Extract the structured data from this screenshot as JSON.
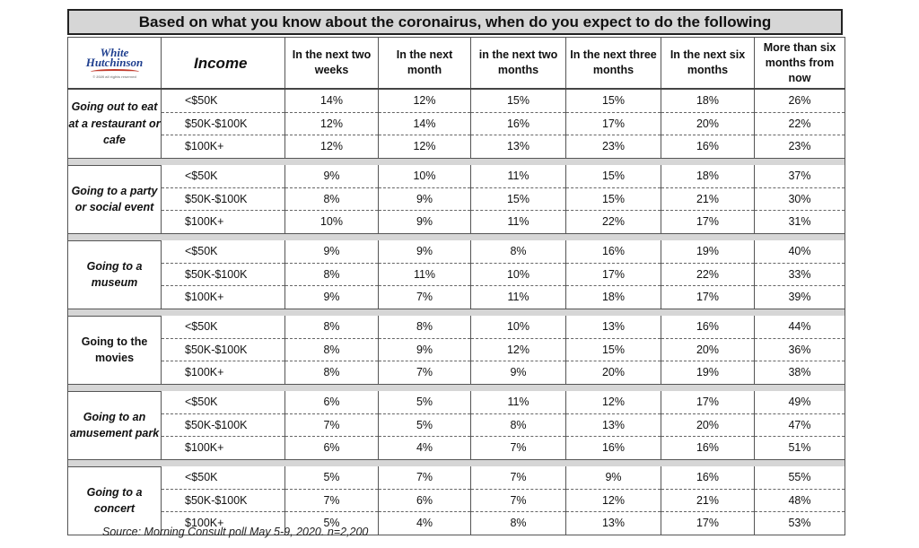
{
  "title": "Based on what you know about the coronairus, when do you expect to do the following",
  "logo": {
    "line1": "White",
    "line2": "Hutchinson",
    "small": "© 2020 all rights reserved"
  },
  "header": {
    "income": "Income",
    "columns": [
      "In the next two weeks",
      "In the next month",
      "in the next two months",
      "In the next three months",
      "In the next six months",
      "More than six months from now"
    ]
  },
  "groups": [
    {
      "label": "Going out to eat at a restaurant or cafe",
      "italic": true,
      "rows": [
        {
          "income": "<$50K",
          "values": [
            "14%",
            "12%",
            "15%",
            "15%",
            "18%",
            "26%"
          ]
        },
        {
          "income": "$50K-$100K",
          "values": [
            "12%",
            "14%",
            "16%",
            "17%",
            "20%",
            "22%"
          ]
        },
        {
          "income": "$100K+",
          "values": [
            "12%",
            "12%",
            "13%",
            "23%",
            "16%",
            "23%"
          ]
        }
      ]
    },
    {
      "label": "Going to a party or social event",
      "italic": true,
      "rows": [
        {
          "income": "<$50K",
          "values": [
            "9%",
            "10%",
            "11%",
            "15%",
            "18%",
            "37%"
          ]
        },
        {
          "income": "$50K-$100K",
          "values": [
            "8%",
            "9%",
            "15%",
            "15%",
            "21%",
            "30%"
          ]
        },
        {
          "income": "$100K+",
          "values": [
            "10%",
            "9%",
            "11%",
            "22%",
            "17%",
            "31%"
          ]
        }
      ]
    },
    {
      "label": "Going to a museum",
      "italic": true,
      "rows": [
        {
          "income": "<$50K",
          "values": [
            "9%",
            "9%",
            "8%",
            "16%",
            "19%",
            "40%"
          ]
        },
        {
          "income": "$50K-$100K",
          "values": [
            "8%",
            "11%",
            "10%",
            "17%",
            "22%",
            "33%"
          ]
        },
        {
          "income": "$100K+",
          "values": [
            "9%",
            "7%",
            "11%",
            "18%",
            "17%",
            "39%"
          ]
        }
      ]
    },
    {
      "label": "Going to the movies",
      "italic": false,
      "rows": [
        {
          "income": "<$50K",
          "values": [
            "8%",
            "8%",
            "10%",
            "13%",
            "16%",
            "44%"
          ]
        },
        {
          "income": "$50K-$100K",
          "values": [
            "8%",
            "9%",
            "12%",
            "15%",
            "20%",
            "36%"
          ]
        },
        {
          "income": "$100K+",
          "values": [
            "8%",
            "7%",
            "9%",
            "20%",
            "19%",
            "38%"
          ]
        }
      ]
    },
    {
      "label": "Going to an amusement park",
      "italic": true,
      "rows": [
        {
          "income": "<$50K",
          "values": [
            "6%",
            "5%",
            "11%",
            "12%",
            "17%",
            "49%"
          ]
        },
        {
          "income": "$50K-$100K",
          "values": [
            "7%",
            "5%",
            "8%",
            "13%",
            "20%",
            "47%"
          ]
        },
        {
          "income": "$100K+",
          "values": [
            "6%",
            "4%",
            "7%",
            "16%",
            "16%",
            "51%"
          ]
        }
      ]
    },
    {
      "label": "Going to a concert",
      "italic": true,
      "rows": [
        {
          "income": "<$50K",
          "values": [
            "5%",
            "7%",
            "7%",
            "9%",
            "16%",
            "55%"
          ]
        },
        {
          "income": "$50K-$100K",
          "values": [
            "7%",
            "6%",
            "7%",
            "12%",
            "21%",
            "48%"
          ]
        },
        {
          "income": "$100K+",
          "values": [
            "5%",
            "4%",
            "8%",
            "13%",
            "17%",
            "53%"
          ]
        }
      ]
    }
  ],
  "source": "Source: Morning Consult poll May 5-9, 2020. n=2,200",
  "colors": {
    "header_band": "#d6d6d6",
    "logo_blue": "#1f3f8f",
    "logo_red": "#c0392b"
  }
}
